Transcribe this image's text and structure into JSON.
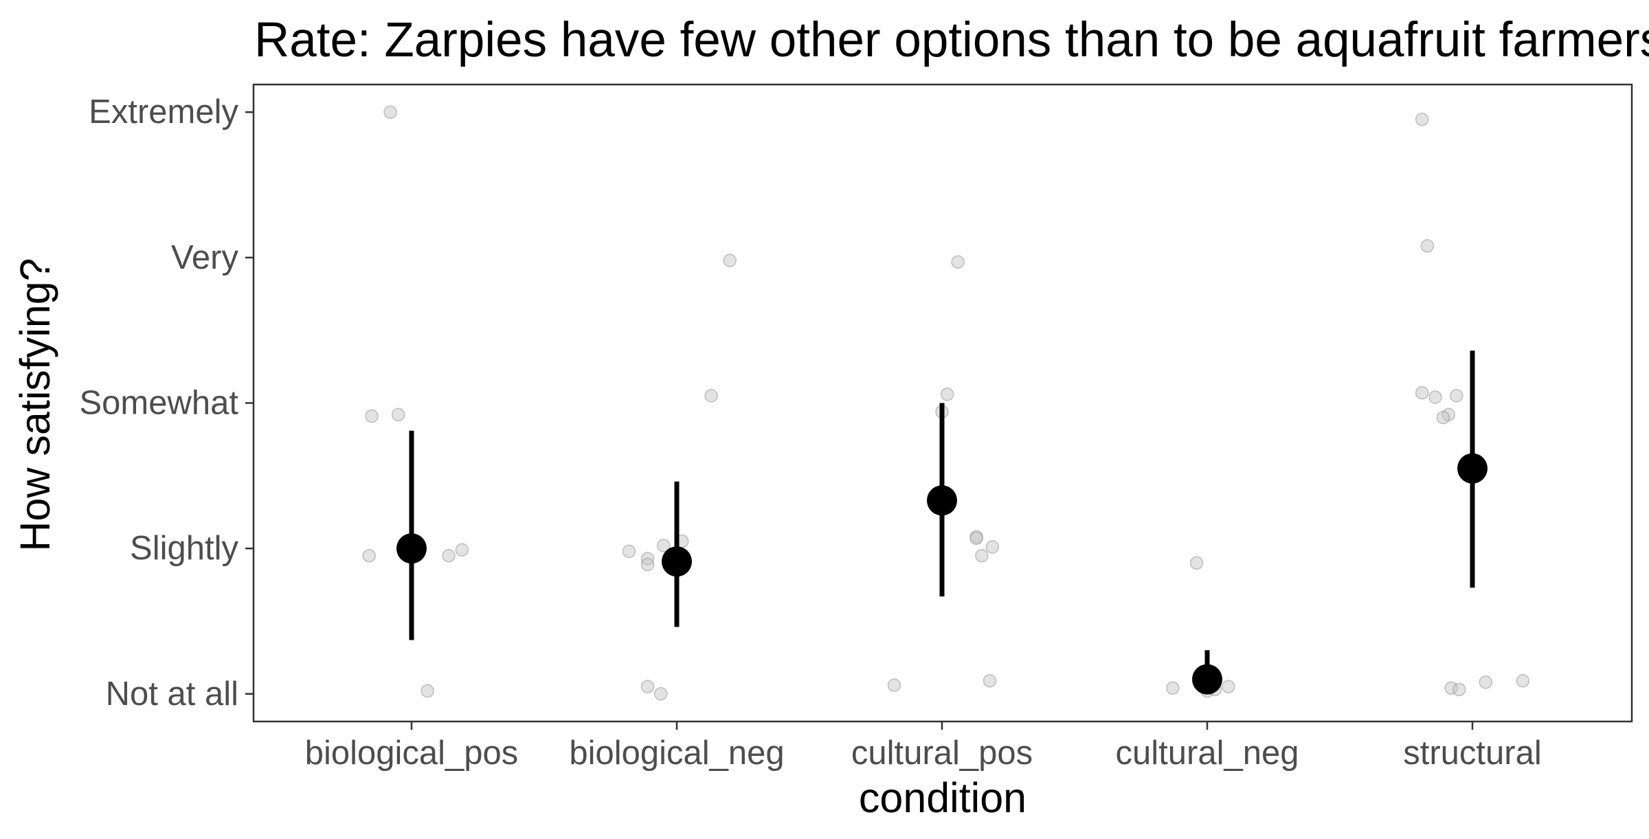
{
  "chart_data": {
    "type": "scatter",
    "title": "Rate: Zarpies have few other options than to be aquafruit farmers.",
    "xlabel": "condition",
    "ylabel": "How satisfying?",
    "categories": [
      "biological_pos",
      "biological_neg",
      "cultural_pos",
      "cultural_neg",
      "structural"
    ],
    "y_tick_labels": [
      "Not at all",
      "Slightly",
      "Somewhat",
      "Very",
      "Extremely"
    ],
    "y_tick_values": [
      1,
      2,
      3,
      4,
      5
    ],
    "ylim": [
      0.81,
      5.19
    ],
    "grid": false,
    "legend": "none",
    "colors": {
      "summary": "#000000",
      "points": "#c0c0c0",
      "points_stroke": "#9a9a9a",
      "panel_border": "#333333"
    },
    "summary": [
      {
        "category": "biological_pos",
        "mean": 2.0,
        "ci_low": 1.37,
        "ci_high": 2.81
      },
      {
        "category": "biological_neg",
        "mean": 1.91,
        "ci_low": 1.46,
        "ci_high": 2.46
      },
      {
        "category": "cultural_pos",
        "mean": 2.33,
        "ci_low": 1.67,
        "ci_high": 3.0
      },
      {
        "category": "cultural_neg",
        "mean": 1.1,
        "ci_low": 1.0,
        "ci_high": 1.3
      },
      {
        "category": "structural",
        "mean": 2.55,
        "ci_low": 1.73,
        "ci_high": 3.36
      }
    ],
    "points": [
      {
        "category": "biological_pos",
        "x": -0.08,
        "y": 5.0
      },
      {
        "category": "biological_pos",
        "x": -0.15,
        "y": 2.91
      },
      {
        "category": "biological_pos",
        "x": -0.05,
        "y": 2.92
      },
      {
        "category": "biological_pos",
        "x": -0.16,
        "y": 1.95
      },
      {
        "category": "biological_pos",
        "x": 0.14,
        "y": 1.95
      },
      {
        "category": "biological_pos",
        "x": 0.19,
        "y": 1.99
      },
      {
        "category": "biological_pos",
        "x": 0.06,
        "y": 1.02
      },
      {
        "category": "biological_neg",
        "x": 0.2,
        "y": 3.98
      },
      {
        "category": "biological_neg",
        "x": 0.13,
        "y": 3.05
      },
      {
        "category": "biological_neg",
        "x": -0.18,
        "y": 1.98
      },
      {
        "category": "biological_neg",
        "x": -0.11,
        "y": 1.93
      },
      {
        "category": "biological_neg",
        "x": -0.11,
        "y": 1.89
      },
      {
        "category": "biological_neg",
        "x": -0.05,
        "y": 2.02
      },
      {
        "category": "biological_neg",
        "x": 0.02,
        "y": 2.05
      },
      {
        "category": "biological_neg",
        "x": -0.11,
        "y": 1.05
      },
      {
        "category": "biological_neg",
        "x": -0.06,
        "y": 1.0
      },
      {
        "category": "cultural_pos",
        "x": 0.06,
        "y": 3.97
      },
      {
        "category": "cultural_pos",
        "x": 0.02,
        "y": 3.06
      },
      {
        "category": "cultural_pos",
        "x": 0.0,
        "y": 2.94
      },
      {
        "category": "cultural_pos",
        "x": 0.13,
        "y": 2.08
      },
      {
        "category": "cultural_pos",
        "x": 0.13,
        "y": 2.07
      },
      {
        "category": "cultural_pos",
        "x": 0.19,
        "y": 2.01
      },
      {
        "category": "cultural_pos",
        "x": 0.15,
        "y": 1.95
      },
      {
        "category": "cultural_pos",
        "x": -0.18,
        "y": 1.06
      },
      {
        "category": "cultural_pos",
        "x": 0.18,
        "y": 1.09
      },
      {
        "category": "cultural_neg",
        "x": -0.04,
        "y": 1.9
      },
      {
        "category": "cultural_neg",
        "x": -0.13,
        "y": 1.04
      },
      {
        "category": "cultural_neg",
        "x": 0.08,
        "y": 1.05
      },
      {
        "category": "cultural_neg",
        "x": 0.0,
        "y": 1.02
      },
      {
        "category": "cultural_neg",
        "x": 0.03,
        "y": 1.03
      },
      {
        "category": "structural",
        "x": -0.19,
        "y": 4.95
      },
      {
        "category": "structural",
        "x": -0.17,
        "y": 4.08
      },
      {
        "category": "structural",
        "x": -0.19,
        "y": 3.07
      },
      {
        "category": "structural",
        "x": -0.14,
        "y": 3.04
      },
      {
        "category": "structural",
        "x": -0.06,
        "y": 3.05
      },
      {
        "category": "structural",
        "x": -0.09,
        "y": 2.92
      },
      {
        "category": "structural",
        "x": -0.11,
        "y": 2.9
      },
      {
        "category": "structural",
        "x": -0.08,
        "y": 1.04
      },
      {
        "category": "structural",
        "x": -0.05,
        "y": 1.03
      },
      {
        "category": "structural",
        "x": 0.05,
        "y": 1.08
      },
      {
        "category": "structural",
        "x": 0.19,
        "y": 1.09
      }
    ]
  }
}
